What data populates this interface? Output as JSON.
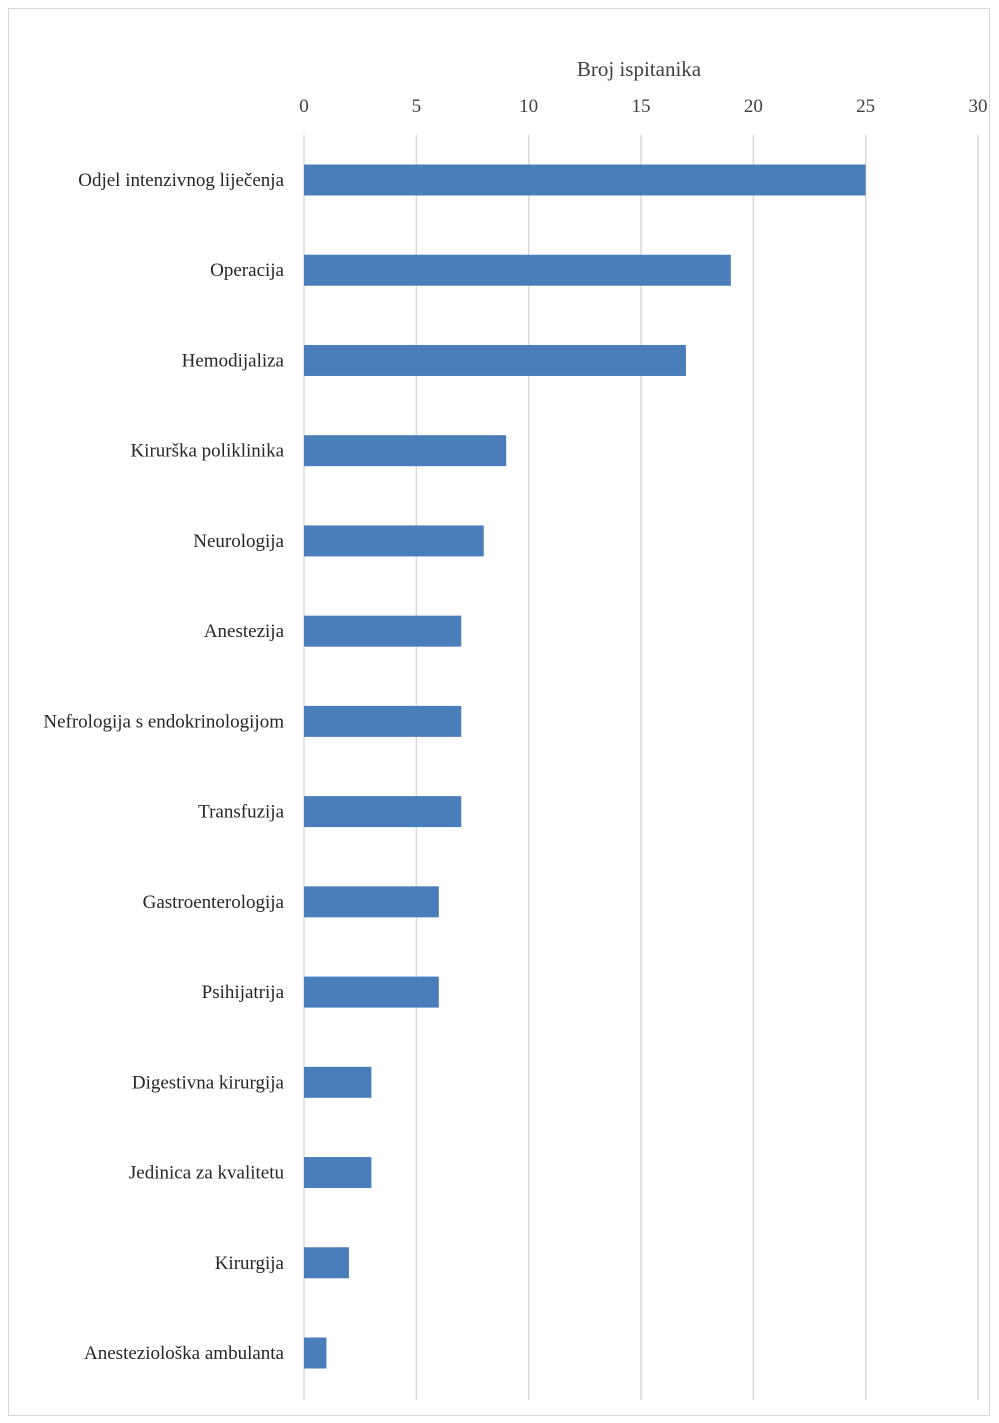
{
  "chart_data": {
    "type": "bar",
    "orientation": "horizontal",
    "title": "",
    "xlabel": "Broj ispitanika",
    "ylabel": "",
    "xlim": [
      0,
      30
    ],
    "x_ticks": [
      0,
      5,
      10,
      15,
      20,
      25,
      30
    ],
    "x_axis_position": "top",
    "grid": true,
    "legend": "none",
    "bar_color": "#4a7ebb",
    "categories": [
      "Odjel intenzivnog liječenja",
      "Operacija",
      "Hemodijaliza",
      "Kirurška poliklinika",
      "Neurologija",
      "Anestezija",
      "Nefrologija s endokrinologijom",
      "Transfuzija",
      "Gastroenterologija",
      "Psihijatrija",
      "Digestivna kirurgija",
      "Jedinica za kvalitetu",
      "Kirurgija",
      "Anesteziološka ambulanta"
    ],
    "values": [
      25,
      19,
      17,
      9,
      8,
      7,
      7,
      7,
      6,
      6,
      3,
      3,
      2,
      1
    ]
  }
}
